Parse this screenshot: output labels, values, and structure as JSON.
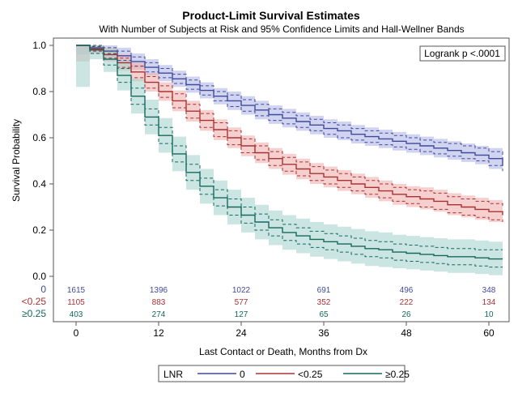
{
  "title": "Product-Limit Survival Estimates",
  "subtitle": "With Number of Subjects at Risk and 95% Confidence Limits and Hall-Wellner Bands",
  "inset": "Logrank p <.0001",
  "legend": {
    "title": "LNR"
  },
  "chart_data": {
    "type": "line",
    "xlabel": "Last Contact or Death, Months from Dx",
    "ylabel": "Survival Probability",
    "xlim": [
      0,
      62
    ],
    "ylim": [
      0,
      1
    ],
    "x_ticks": [
      0,
      12,
      24,
      36,
      48,
      60
    ],
    "x_tick_labels": [
      "0",
      "12",
      "24",
      "36",
      "48",
      "60"
    ],
    "y_ticks": [
      0,
      0.2,
      0.4,
      0.6,
      0.8,
      1.0
    ],
    "y_tick_labels": [
      "0.0",
      "0.2",
      "0.4",
      "0.6",
      "0.8",
      "1.0"
    ],
    "grid": false,
    "legend_position": "bottom",
    "x": [
      0,
      2,
      4,
      6,
      8,
      10,
      12,
      14,
      16,
      18,
      20,
      22,
      24,
      26,
      28,
      30,
      32,
      34,
      36,
      38,
      40,
      42,
      44,
      46,
      48,
      50,
      52,
      54,
      56,
      58,
      60,
      62
    ],
    "series": [
      {
        "name": "0",
        "color": "#3f4a9a",
        "band_color": "#b3b7e6",
        "estimate": [
          1.0,
          0.99,
          0.975,
          0.955,
          0.93,
          0.905,
          0.88,
          0.855,
          0.83,
          0.805,
          0.78,
          0.76,
          0.74,
          0.72,
          0.7,
          0.685,
          0.67,
          0.655,
          0.64,
          0.63,
          0.615,
          0.605,
          0.595,
          0.585,
          0.575,
          0.565,
          0.555,
          0.545,
          0.535,
          0.525,
          0.51,
          0.48
        ],
        "ci_lower": [
          1.0,
          0.98,
          0.96,
          0.935,
          0.91,
          0.885,
          0.86,
          0.835,
          0.81,
          0.785,
          0.76,
          0.735,
          0.715,
          0.695,
          0.675,
          0.66,
          0.645,
          0.63,
          0.615,
          0.6,
          0.59,
          0.58,
          0.57,
          0.56,
          0.55,
          0.54,
          0.53,
          0.52,
          0.51,
          0.5,
          0.48,
          0.455
        ],
        "ci_upper": [
          1.0,
          1.0,
          0.99,
          0.975,
          0.95,
          0.925,
          0.9,
          0.875,
          0.85,
          0.825,
          0.8,
          0.785,
          0.765,
          0.745,
          0.725,
          0.71,
          0.695,
          0.68,
          0.665,
          0.655,
          0.64,
          0.63,
          0.62,
          0.61,
          0.6,
          0.59,
          0.58,
          0.575,
          0.565,
          0.555,
          0.54,
          0.51
        ],
        "hw_lower": [
          0.96,
          0.965,
          0.945,
          0.92,
          0.895,
          0.87,
          0.845,
          0.82,
          0.795,
          0.77,
          0.745,
          0.72,
          0.7,
          0.68,
          0.66,
          0.645,
          0.63,
          0.615,
          0.6,
          0.59,
          0.575,
          0.565,
          0.555,
          0.545,
          0.535,
          0.525,
          0.515,
          0.505,
          0.495,
          0.485,
          0.465,
          0.44
        ],
        "hw_upper": [
          1.0,
          1.0,
          1.0,
          0.99,
          0.965,
          0.94,
          0.915,
          0.89,
          0.865,
          0.84,
          0.815,
          0.8,
          0.78,
          0.76,
          0.74,
          0.725,
          0.71,
          0.695,
          0.68,
          0.67,
          0.655,
          0.645,
          0.635,
          0.625,
          0.615,
          0.605,
          0.595,
          0.585,
          0.575,
          0.565,
          0.555,
          0.525
        ]
      },
      {
        "name": "<0.25",
        "color": "#a83232",
        "band_color": "#eeb1ad",
        "estimate": [
          1.0,
          0.985,
          0.96,
          0.925,
          0.885,
          0.84,
          0.8,
          0.76,
          0.715,
          0.675,
          0.635,
          0.6,
          0.565,
          0.535,
          0.51,
          0.485,
          0.465,
          0.445,
          0.43,
          0.415,
          0.4,
          0.385,
          0.37,
          0.355,
          0.345,
          0.335,
          0.325,
          0.31,
          0.3,
          0.29,
          0.28,
          0.265
        ],
        "ci_lower": [
          1.0,
          0.975,
          0.945,
          0.905,
          0.86,
          0.815,
          0.775,
          0.73,
          0.685,
          0.645,
          0.605,
          0.57,
          0.535,
          0.505,
          0.48,
          0.455,
          0.435,
          0.415,
          0.4,
          0.385,
          0.37,
          0.355,
          0.34,
          0.325,
          0.315,
          0.3,
          0.29,
          0.275,
          0.265,
          0.255,
          0.245,
          0.235
        ],
        "ci_upper": [
          1.0,
          0.995,
          0.975,
          0.945,
          0.91,
          0.865,
          0.825,
          0.79,
          0.745,
          0.705,
          0.665,
          0.63,
          0.595,
          0.565,
          0.54,
          0.515,
          0.495,
          0.475,
          0.46,
          0.445,
          0.43,
          0.415,
          0.4,
          0.385,
          0.375,
          0.37,
          0.36,
          0.345,
          0.335,
          0.325,
          0.315,
          0.3
        ],
        "hw_lower": [
          0.93,
          0.965,
          0.93,
          0.89,
          0.845,
          0.8,
          0.76,
          0.715,
          0.67,
          0.63,
          0.59,
          0.555,
          0.52,
          0.49,
          0.465,
          0.44,
          0.42,
          0.4,
          0.385,
          0.37,
          0.355,
          0.34,
          0.325,
          0.31,
          0.3,
          0.29,
          0.28,
          0.265,
          0.255,
          0.245,
          0.235,
          0.225
        ],
        "hw_upper": [
          1.0,
          1.0,
          0.99,
          0.96,
          0.925,
          0.88,
          0.84,
          0.805,
          0.76,
          0.72,
          0.68,
          0.645,
          0.61,
          0.58,
          0.555,
          0.53,
          0.51,
          0.49,
          0.475,
          0.46,
          0.445,
          0.43,
          0.415,
          0.4,
          0.39,
          0.385,
          0.375,
          0.36,
          0.35,
          0.34,
          0.33,
          0.315
        ]
      },
      {
        "name": "≥0.25",
        "color": "#14695e",
        "band_color": "#a9d4cf",
        "estimate": [
          1.0,
          0.98,
          0.94,
          0.87,
          0.78,
          0.69,
          0.61,
          0.53,
          0.45,
          0.39,
          0.34,
          0.3,
          0.265,
          0.235,
          0.21,
          0.19,
          0.175,
          0.16,
          0.15,
          0.14,
          0.13,
          0.12,
          0.115,
          0.105,
          0.1,
          0.095,
          0.09,
          0.085,
          0.085,
          0.08,
          0.075,
          0.075
        ],
        "ci_lower": [
          1.0,
          0.965,
          0.915,
          0.84,
          0.745,
          0.655,
          0.575,
          0.495,
          0.415,
          0.355,
          0.305,
          0.265,
          0.23,
          0.2,
          0.175,
          0.155,
          0.14,
          0.125,
          0.115,
          0.105,
          0.095,
          0.085,
          0.08,
          0.07,
          0.065,
          0.06,
          0.055,
          0.05,
          0.05,
          0.045,
          0.04,
          0.04
        ],
        "ci_upper": [
          1.0,
          0.995,
          0.965,
          0.9,
          0.815,
          0.725,
          0.645,
          0.565,
          0.485,
          0.425,
          0.375,
          0.335,
          0.3,
          0.27,
          0.245,
          0.225,
          0.21,
          0.195,
          0.185,
          0.175,
          0.165,
          0.155,
          0.15,
          0.14,
          0.135,
          0.13,
          0.125,
          0.12,
          0.12,
          0.115,
          0.115,
          0.115
        ],
        "hw_lower": [
          0.82,
          0.94,
          0.885,
          0.805,
          0.705,
          0.615,
          0.535,
          0.455,
          0.375,
          0.315,
          0.265,
          0.225,
          0.19,
          0.16,
          0.135,
          0.115,
          0.1,
          0.085,
          0.075,
          0.065,
          0.055,
          0.045,
          0.04,
          0.035,
          0.03,
          0.025,
          0.02,
          0.015,
          0.015,
          0.01,
          0.005,
          0.005
        ],
        "hw_upper": [
          1.0,
          1.0,
          0.99,
          0.935,
          0.855,
          0.765,
          0.685,
          0.605,
          0.525,
          0.465,
          0.415,
          0.375,
          0.34,
          0.31,
          0.285,
          0.265,
          0.25,
          0.235,
          0.225,
          0.215,
          0.205,
          0.195,
          0.19,
          0.18,
          0.175,
          0.17,
          0.165,
          0.16,
          0.16,
          0.155,
          0.15,
          0.15
        ]
      }
    ],
    "at_risk": {
      "times": [
        0,
        12,
        24,
        36,
        48,
        60
      ],
      "rows": [
        {
          "label": "0",
          "values": [
            "1615",
            "1396",
            "1022",
            "691",
            "496",
            "348"
          ]
        },
        {
          "label": "<0.25",
          "values": [
            "1105",
            "883",
            "577",
            "352",
            "222",
            "134"
          ]
        },
        {
          "label": "≥0.25",
          "values": [
            "403",
            "274",
            "127",
            "65",
            "26",
            "10"
          ]
        }
      ]
    }
  }
}
